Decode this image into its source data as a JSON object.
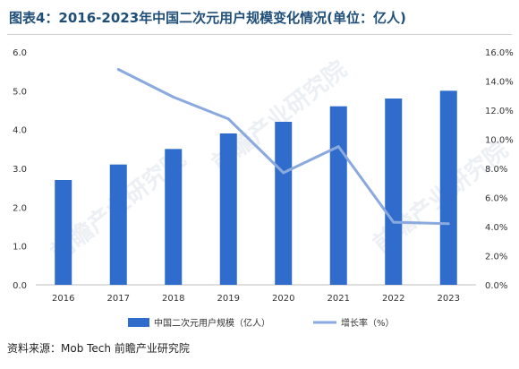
{
  "title": "图表4：2016-2023年中国二次元用户规模变化情况(单位：亿人)",
  "source": "资料来源：Mob Tech 前瞻产业研究院",
  "watermark": "前瞻产业研究院",
  "colors": {
    "bar": "#2f6ccb",
    "line": "#8aa9df",
    "axis": "#bfbfbf",
    "text": "#333333"
  },
  "chart_data": {
    "type": "bar",
    "categories": [
      "2016",
      "2017",
      "2018",
      "2019",
      "2020",
      "2021",
      "2022",
      "2023"
    ],
    "series": [
      {
        "name": "中国二次元用户规模（亿人）",
        "type": "bar",
        "axis": "left",
        "values": [
          2.7,
          3.1,
          3.5,
          3.9,
          4.2,
          4.6,
          4.8,
          5.0
        ]
      },
      {
        "name": "增长率（%）",
        "type": "line",
        "axis": "right",
        "values": [
          null,
          14.8,
          12.9,
          11.4,
          7.7,
          9.5,
          4.3,
          4.2
        ]
      }
    ],
    "y_left": {
      "min": 0,
      "max": 6,
      "step": 1,
      "ticks": [
        "0.0",
        "1.0",
        "2.0",
        "3.0",
        "4.0",
        "5.0",
        "6.0"
      ]
    },
    "y_right": {
      "min": 0,
      "max": 16,
      "step": 2,
      "ticks": [
        "0.0%",
        "2.0%",
        "4.0%",
        "6.0%",
        "8.0%",
        "10.0%",
        "12.0%",
        "14.0%",
        "16.0%"
      ]
    },
    "grid": false,
    "legend_position": "bottom"
  }
}
